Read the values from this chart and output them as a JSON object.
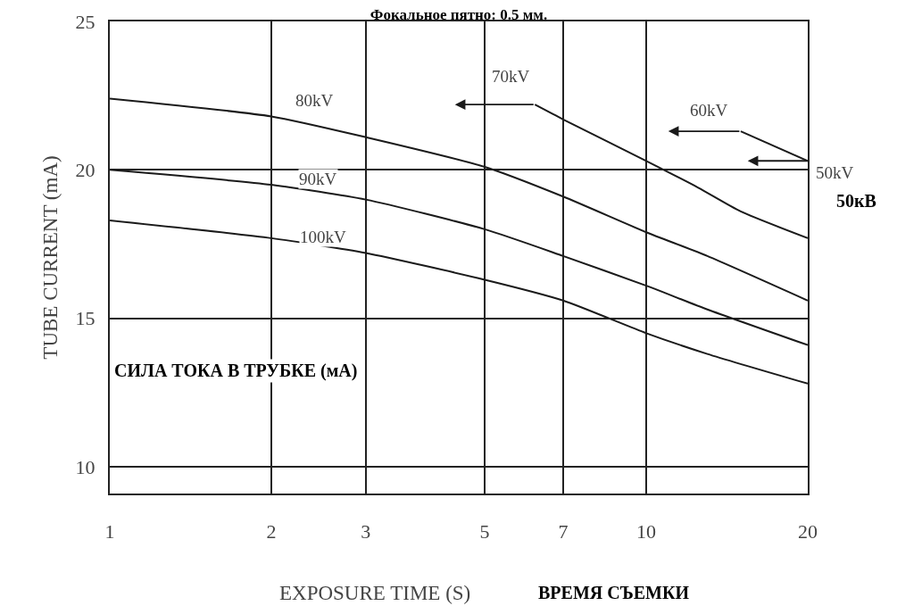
{
  "chart_data": {
    "type": "line",
    "title": "Фокальное пятно: 0.5 мм.",
    "xlabel": "EXPOSURE TIME (S)",
    "ylabel": "TUBE CURRENT (mA)",
    "annotations": [
      "50кВ",
      "СИЛА ТОКА В ТРУБКЕ (мА)",
      "ВРЕМЯ СЪЕМКИ"
    ],
    "series": [
      {
        "name": "100kV",
        "color": "#1a1a1a",
        "x": [
          1,
          2,
          3,
          5,
          7,
          10,
          13,
          20
        ],
        "values": [
          18.3,
          17.7,
          17.2,
          16.3,
          15.6,
          14.5,
          13.8,
          12.8
        ]
      },
      {
        "name": "90kV",
        "color": "#1a1a1a",
        "x": [
          1,
          2,
          3,
          5,
          7,
          10,
          13,
          20
        ],
        "values": [
          20.0,
          19.5,
          19.0,
          18.0,
          17.1,
          16.1,
          15.3,
          14.1
        ]
      },
      {
        "name": "80kV",
        "color": "#1a1a1a",
        "x": [
          1,
          2,
          3,
          5,
          7,
          10,
          13,
          20
        ],
        "values": [
          22.4,
          21.8,
          21.1,
          20.1,
          19.1,
          17.9,
          17.1,
          15.6
        ]
      },
      {
        "name": "70kV",
        "color": "#1a1a1a",
        "x": [
          6.2,
          7,
          10,
          12.5,
          15,
          20
        ],
        "values": [
          22.2,
          21.7,
          20.3,
          19.4,
          18.6,
          17.7
        ]
      },
      {
        "name": "60kV",
        "color": "#1a1a1a",
        "x": [
          15,
          20
        ],
        "values": [
          21.3,
          20.3
        ]
      },
      {
        "name": "50kV",
        "color": "#1a1a1a",
        "x": [
          16,
          20
        ],
        "values": [
          20.3,
          20.3
        ]
      }
    ],
    "log": "x",
    "xlim": [
      1,
      20
    ],
    "xticks": [
      1,
      2,
      3,
      5,
      7,
      10,
      20
    ],
    "ylim": [
      9.1,
      25
    ],
    "yticks": [
      10,
      15,
      20,
      25
    ],
    "grid": true,
    "legend": false,
    "line_style": "solid"
  }
}
